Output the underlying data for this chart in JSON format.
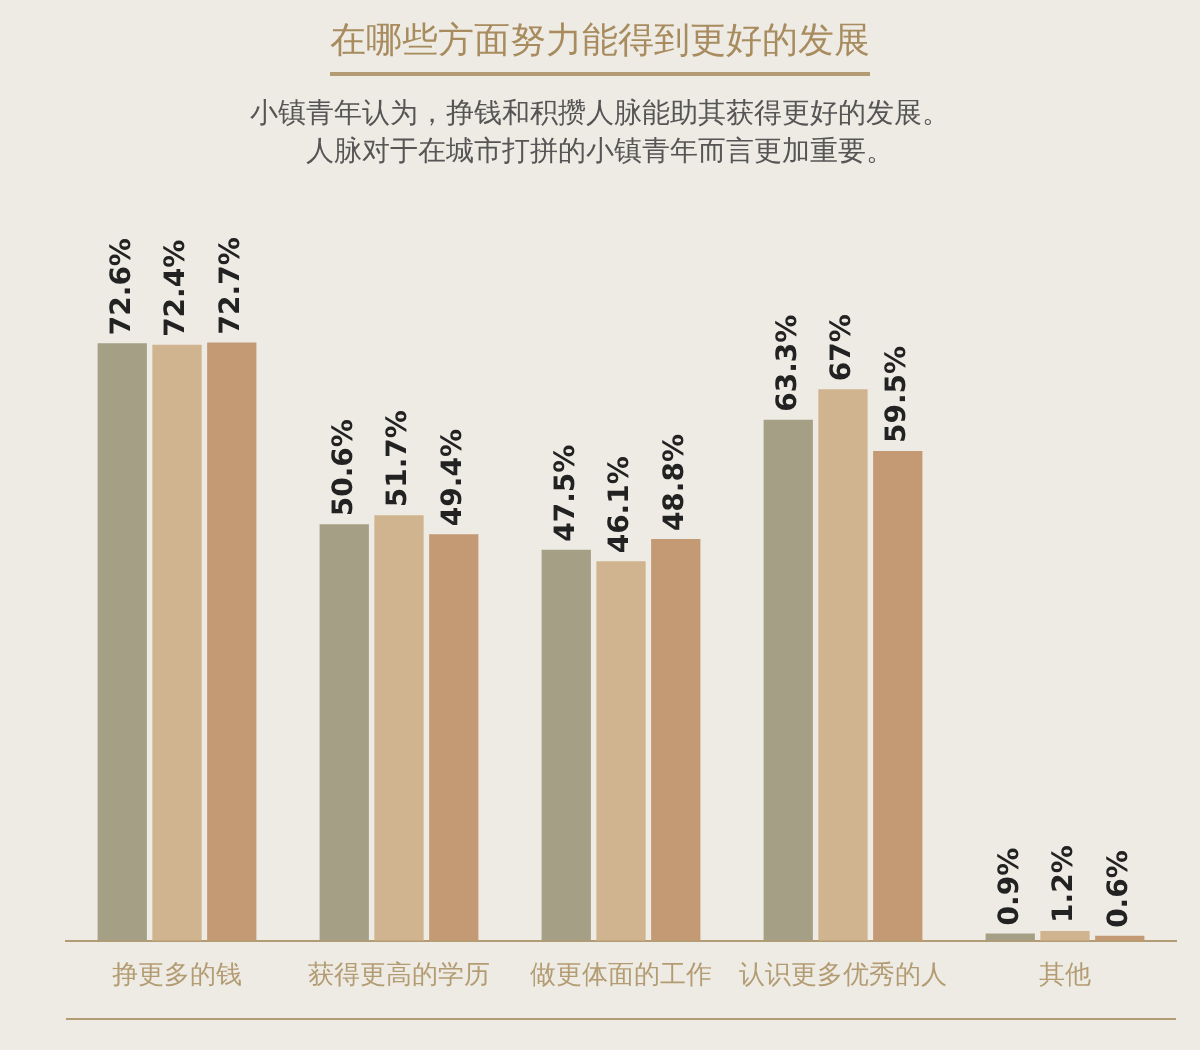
{
  "chart_data": {
    "type": "bar",
    "title": "在哪些方面努力能得到更好的发展",
    "subtitle": "小镇青年认为，挣钱和积攒人脉能助其获得更好的发展。",
    "annotations": [
      "人脉对于在城市打拼的小镇青年而言更加重要。"
    ],
    "categories": [
      "挣更多的钱",
      "获得更高的学历",
      "做更体面的工作",
      "认识更多优秀的人",
      "其他"
    ],
    "series": [
      {
        "color": "#a59f85",
        "values": [
          72.6,
          50.6,
          47.5,
          63.3,
          0.9
        ],
        "value_labels": [
          "72.6%",
          "50.6%",
          "47.5%",
          "63.3%",
          "0.9%"
        ]
      },
      {
        "color": "#cfb48f",
        "values": [
          72.4,
          51.7,
          46.1,
          67,
          1.2
        ],
        "value_labels": [
          "72.4%",
          "51.7%",
          "46.1%",
          "67%",
          "1.2%"
        ]
      },
      {
        "color": "#c49a75",
        "values": [
          72.7,
          49.4,
          48.8,
          59.5,
          0.6
        ],
        "value_labels": [
          "72.7%",
          "49.4%",
          "48.8%",
          "59.5%",
          "0.6%"
        ]
      }
    ],
    "grid": false,
    "legend": false
  }
}
